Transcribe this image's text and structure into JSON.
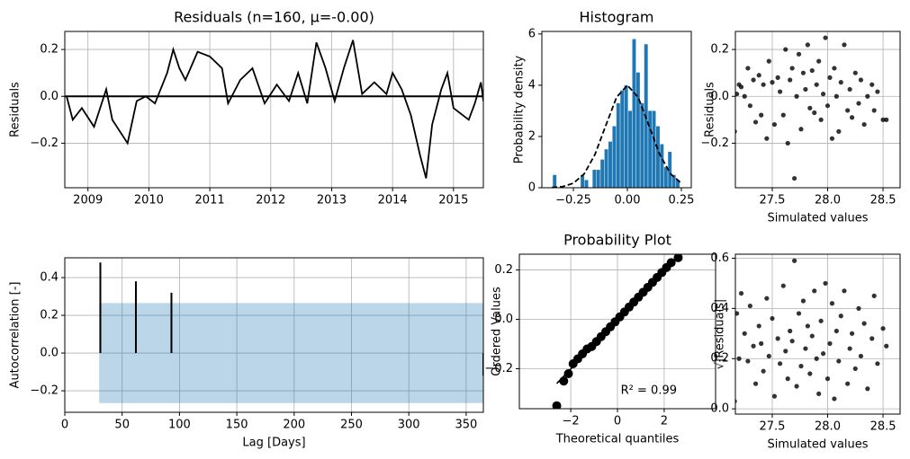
{
  "chart_data": [
    {
      "type": "line",
      "title": "Residuals (n=160, μ=-0.00)",
      "ylabel": "Residuals",
      "color": "#000000",
      "grid": true,
      "hline": 0,
      "xlim": [
        2008.62,
        2015.49
      ],
      "ylim": [
        -0.39,
        0.277
      ],
      "xticks": [
        2009,
        2010,
        2011,
        2012,
        2013,
        2014,
        2015
      ],
      "yticks": [
        {
          "value": -0.2,
          "label": "−0.2"
        },
        {
          "value": 0,
          "label": "0.0"
        },
        0.2
      ],
      "x": [
        2008.65,
        2008.75,
        2008.9,
        2009.1,
        2009.3,
        2009.4,
        2009.65,
        2009.8,
        2009.95,
        2010.1,
        2010.3,
        2010.4,
        2010.5,
        2010.6,
        2010.8,
        2011.0,
        2011.2,
        2011.3,
        2011.5,
        2011.7,
        2011.9,
        2012.1,
        2012.3,
        2012.45,
        2012.6,
        2012.75,
        2012.9,
        2013.05,
        2013.2,
        2013.35,
        2013.5,
        2013.7,
        2013.9,
        2014.0,
        2014.15,
        2014.3,
        2014.45,
        2014.55,
        2014.65,
        2014.8,
        2014.9,
        2015.0,
        2015.25,
        2015.35,
        2015.45,
        2015.49
      ],
      "values": [
        0.0,
        -0.1,
        -0.05,
        -0.13,
        0.03,
        -0.1,
        -0.2,
        -0.02,
        0.0,
        -0.03,
        0.1,
        0.2,
        0.12,
        0.07,
        0.19,
        0.17,
        0.12,
        -0.03,
        0.07,
        0.12,
        -0.03,
        0.05,
        -0.02,
        0.1,
        -0.03,
        0.23,
        0.12,
        -0.02,
        0.12,
        0.24,
        0.01,
        0.06,
        0.01,
        0.1,
        0.03,
        -0.08,
        -0.25,
        -0.35,
        -0.12,
        0.03,
        0.1,
        -0.05,
        -0.1,
        -0.03,
        0.06,
        -0.02
      ]
    },
    {
      "type": "histogram",
      "title": "Histogram",
      "ylabel": "Probability density",
      "color": "#1f77b4",
      "grid": false,
      "xlim": [
        -0.396,
        0.296
      ],
      "ylim": [
        0,
        6.1
      ],
      "xticks": [
        {
          "value": -0.25,
          "label": "−0.25"
        },
        {
          "value": 0,
          "label": "0.00"
        },
        {
          "value": 0.25,
          "label": "0.25"
        }
      ],
      "yticks": [
        0,
        2,
        4,
        6
      ],
      "bins": [
        -0.345,
        -0.3266,
        -0.3082,
        -0.2898,
        -0.2714,
        -0.253,
        -0.2346,
        -0.2162,
        -0.1978,
        -0.1794,
        -0.161,
        -0.1426,
        -0.1242,
        -0.1058,
        -0.0874,
        -0.069,
        -0.0506,
        -0.0322,
        -0.0138,
        0.0046,
        0.023,
        0.0414,
        0.0598,
        0.0782,
        0.0966,
        0.115,
        0.1334,
        0.1518,
        0.1702,
        0.1886,
        0.207,
        0.2254,
        0.2438
      ],
      "values": [
        0.5,
        0,
        0,
        0,
        0,
        0,
        0,
        0.5,
        0.3,
        0,
        0.7,
        0.7,
        1.1,
        1.5,
        1.8,
        2.4,
        3.3,
        3.8,
        4.0,
        3.0,
        5.8,
        4.5,
        3.3,
        5.6,
        3.0,
        3.0,
        2.4,
        1.7,
        0.8,
        1.4,
        0.5,
        0.3
      ],
      "pdf": {
        "x": [
          -0.35,
          -0.3,
          -0.25,
          -0.2,
          -0.15,
          -0.1,
          -0.05,
          0,
          0.05,
          0.1,
          0.15,
          0.2,
          0.25
        ],
        "values": [
          0.009,
          0.044,
          0.176,
          0.541,
          1.298,
          2.426,
          3.53,
          4.0,
          3.53,
          2.426,
          1.298,
          0.541,
          0.176
        ]
      }
    },
    {
      "type": "scatter",
      "xlabel": "Simulated values",
      "ylabel": "Residuals",
      "color": "#000000",
      "grid": true,
      "xlim": [
        27.167,
        28.654
      ],
      "ylim": [
        -0.39,
        0.277
      ],
      "xticks": [
        27.5,
        {
          "value": 28,
          "label": "28.0"
        },
        28.5
      ],
      "yticks": [
        {
          "value": -0.2,
          "label": "−0.2"
        },
        {
          "value": 0,
          "label": "0.0"
        },
        0.2
      ],
      "x": [
        27.15,
        27.16,
        27.18,
        27.2,
        27.22,
        27.25,
        27.28,
        27.3,
        27.33,
        27.35,
        27.38,
        27.4,
        27.42,
        27.45,
        27.47,
        27.5,
        27.52,
        27.55,
        27.57,
        27.6,
        27.62,
        27.64,
        27.66,
        27.68,
        27.7,
        27.72,
        27.74,
        27.76,
        27.78,
        27.8,
        27.82,
        27.84,
        27.86,
        27.88,
        27.9,
        27.92,
        27.94,
        27.96,
        27.98,
        28.0,
        28.02,
        28.04,
        28.06,
        28.08,
        28.1,
        28.12,
        28.15,
        28.18,
        28.2,
        28.22,
        28.25,
        28.28,
        28.3,
        28.33,
        28.36,
        28.4,
        28.42,
        28.45,
        28.5,
        28.53
      ],
      "values": [
        -0.17,
        -0.15,
        0.01,
        0.05,
        0.04,
        0.0,
        0.12,
        -0.04,
        0.07,
        -0.11,
        0.09,
        -0.08,
        0.05,
        -0.18,
        0.15,
        0.06,
        -0.12,
        0.08,
        0.02,
        -0.08,
        0.2,
        -0.2,
        0.07,
        0.12,
        -0.35,
        0.0,
        0.18,
        -0.14,
        0.1,
        0.03,
        0.22,
        -0.05,
        0.11,
        -0.07,
        0.05,
        0.15,
        -0.1,
        0.01,
        0.25,
        -0.04,
        0.08,
        -0.18,
        0.12,
        0.0,
        -0.15,
        0.06,
        0.22,
        -0.06,
        0.03,
        -0.09,
        0.1,
        -0.03,
        0.07,
        -0.12,
        0.0,
        0.05,
        -0.06,
        0.02,
        -0.1,
        -0.1
      ]
    },
    {
      "type": "stem",
      "xlabel": "Lag [Days]",
      "ylabel": "Autocorrelation [-]",
      "color": "#000000",
      "band_color": "#1f77b4",
      "grid": true,
      "xlim": [
        0,
        365
      ],
      "ylim": [
        -0.314,
        0.505
      ],
      "xticks": [
        0,
        50,
        100,
        150,
        200,
        250,
        300,
        350
      ],
      "yticks": [
        {
          "value": -0.2,
          "label": "−0.2"
        },
        {
          "value": 0,
          "label": "0.0"
        },
        0.2,
        0.4
      ],
      "x": [
        31,
        62,
        93,
        365
      ],
      "values": [
        0.48,
        0.38,
        0.32,
        -0.12
      ],
      "band": {
        "x": [
          30,
          365
        ],
        "upper": [
          0.265,
          0.265
        ],
        "lower": [
          -0.265,
          -0.265
        ]
      }
    },
    {
      "type": "probplot",
      "title": "Probability Plot",
      "xlabel": "Theoretical quantiles",
      "ylabel": "Ordered Values",
      "color": "#000000",
      "grid": true,
      "annotation": "R² = 0.99",
      "xlim": [
        -4.2,
        4.2
      ],
      "ylim": [
        -0.362,
        0.264
      ],
      "xticks": [
        {
          "value": -2,
          "label": "−2"
        },
        0,
        2
      ],
      "yticks": [
        {
          "value": -0.2,
          "label": "−0.2"
        },
        {
          "value": 0,
          "label": "0.0"
        },
        0.2
      ],
      "x": [
        -2.6,
        -2.3,
        -2.1,
        -1.9,
        -1.7,
        -1.5,
        -1.3,
        -1.1,
        -0.9,
        -0.7,
        -0.5,
        -0.3,
        -0.1,
        0.1,
        0.3,
        0.5,
        0.7,
        0.9,
        1.1,
        1.3,
        1.5,
        1.7,
        1.9,
        2.1,
        2.3,
        2.6
      ],
      "values": [
        -0.35,
        -0.25,
        -0.22,
        -0.18,
        -0.16,
        -0.14,
        -0.12,
        -0.11,
        -0.09,
        -0.07,
        -0.05,
        -0.03,
        -0.01,
        0.01,
        0.03,
        0.05,
        0.07,
        0.09,
        0.11,
        0.13,
        0.15,
        0.17,
        0.19,
        0.21,
        0.23,
        0.25
      ],
      "fit": {
        "x": [
          -2.6,
          2.6
        ],
        "values": [
          -0.26,
          0.25
        ]
      }
    },
    {
      "type": "scatter",
      "xlabel": "Simulated values",
      "ylabel": "√|Residuals|",
      "color": "#000000",
      "grid": true,
      "xlim": [
        27.167,
        28.654
      ],
      "ylim": [
        -0.021,
        0.616
      ],
      "xticks": [
        27.5,
        {
          "value": 28,
          "label": "28.0"
        },
        28.5
      ],
      "yticks": [
        {
          "value": 0,
          "label": "0.0"
        },
        0.2,
        0.4,
        0.6
      ],
      "x": [
        27.15,
        27.16,
        27.18,
        27.2,
        27.22,
        27.25,
        27.28,
        27.3,
        27.33,
        27.35,
        27.38,
        27.4,
        27.42,
        27.45,
        27.47,
        27.5,
        27.52,
        27.55,
        27.57,
        27.6,
        27.62,
        27.64,
        27.66,
        27.68,
        27.7,
        27.72,
        27.74,
        27.76,
        27.78,
        27.8,
        27.82,
        27.84,
        27.86,
        27.88,
        27.9,
        27.92,
        27.94,
        27.96,
        27.98,
        28.0,
        28.02,
        28.04,
        28.06,
        28.08,
        28.1,
        28.12,
        28.15,
        28.18,
        28.2,
        28.22,
        28.25,
        28.28,
        28.3,
        28.33,
        28.36,
        28.4,
        28.42,
        28.45,
        28.5,
        28.53
      ],
      "values": [
        0.4,
        0.03,
        0.38,
        0.2,
        0.46,
        0.3,
        0.19,
        0.41,
        0.25,
        0.1,
        0.33,
        0.26,
        0.15,
        0.44,
        0.21,
        0.36,
        0.05,
        0.28,
        0.18,
        0.49,
        0.23,
        0.12,
        0.31,
        0.27,
        0.59,
        0.09,
        0.38,
        0.17,
        0.43,
        0.24,
        0.33,
        0.14,
        0.29,
        0.47,
        0.2,
        0.06,
        0.35,
        0.22,
        0.5,
        0.12,
        0.26,
        0.42,
        0.04,
        0.31,
        0.19,
        0.37,
        0.47,
        0.1,
        0.24,
        0.3,
        0.16,
        0.4,
        0.21,
        0.34,
        0.08,
        0.28,
        0.45,
        0.18,
        0.32,
        0.25
      ]
    }
  ]
}
